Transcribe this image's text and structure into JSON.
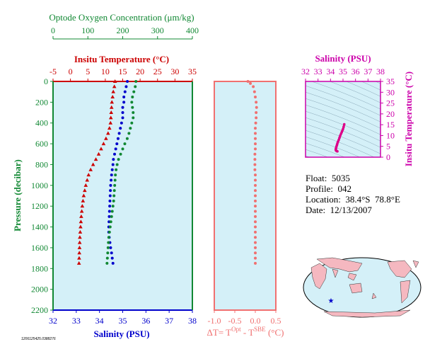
{
  "colors": {
    "temperature": "#cc0000",
    "salinity": "#0000cc",
    "oxygen": "#118833",
    "delta_t": "#f07070",
    "ts_curve": "#dd0088",
    "axis_magenta": "#cc00aa",
    "plot_bg": "#d4f0f8",
    "land": "#f5b8c0",
    "float_marker": "#0000cc"
  },
  "labels": {
    "oxygen_title": "Optode Oxygen Concentration (μm/kg)",
    "temp_title": "Insitu Temperature (°C)",
    "pressure_title": "Pressure (decibar)",
    "salinity_title": "Salinity (PSU)",
    "delta_title": "ΔT= T",
    "delta_sup1": "Opt",
    "delta_mid": " - T",
    "delta_sup2": "SBE",
    "delta_end": " (°C)",
    "ts_salinity_title": "Salinity (PSU)",
    "ts_temp_title": "Insitu Temperature (°C)",
    "footer_stamp": "1206125425.0388276"
  },
  "float_info": {
    "float": "Float:  5035",
    "profile": "Profile:  042",
    "location": "Location:  38.4°S  78.8°E",
    "date": "Date:  12/13/2007"
  },
  "chart_data": [
    {
      "type": "scatter",
      "title": "",
      "ylabel": "Pressure (decibar)",
      "ylim": [
        2200,
        0
      ],
      "y_ticks": [
        "0",
        "200",
        "400",
        "600",
        "800",
        "1000",
        "1200",
        "1400",
        "1600",
        "1800",
        "2000",
        "2200"
      ],
      "axes": {
        "oxygen": {
          "label": "Optode Oxygen Concentration (μm/kg)",
          "range": [
            0,
            400
          ],
          "ticks": [
            "0",
            "100",
            "200",
            "300",
            "400"
          ]
        },
        "temperature": {
          "label": "Insitu Temperature (°C)",
          "range": [
            -5,
            35
          ],
          "ticks": [
            "-5",
            "0",
            "5",
            "10",
            "15",
            "20",
            "25",
            "30",
            "35"
          ]
        },
        "salinity": {
          "label": "Salinity (PSU)",
          "range": [
            32,
            38
          ],
          "ticks": [
            "32",
            "33",
            "34",
            "35",
            "36",
            "37",
            "38"
          ]
        }
      },
      "series": [
        {
          "key": "temperature",
          "marker": "triangle",
          "points": [
            [
              12.8,
              0
            ],
            [
              12.6,
              50
            ],
            [
              12.3,
              100
            ],
            [
              12.1,
              150
            ],
            [
              11.9,
              200
            ],
            [
              11.8,
              250
            ],
            [
              11.7,
              300
            ],
            [
              11.6,
              350
            ],
            [
              11.5,
              400
            ],
            [
              11.2,
              450
            ],
            [
              10.8,
              500
            ],
            [
              10.2,
              550
            ],
            [
              9.5,
              600
            ],
            [
              8.8,
              650
            ],
            [
              8.1,
              700
            ],
            [
              7.3,
              750
            ],
            [
              6.5,
              800
            ],
            [
              5.8,
              850
            ],
            [
              5.2,
              900
            ],
            [
              4.8,
              950
            ],
            [
              4.4,
              1000
            ],
            [
              4.1,
              1050
            ],
            [
              3.8,
              1100
            ],
            [
              3.6,
              1150
            ],
            [
              3.4,
              1200
            ],
            [
              3.25,
              1250
            ],
            [
              3.1,
              1300
            ],
            [
              3.0,
              1350
            ],
            [
              2.9,
              1400
            ],
            [
              2.8,
              1450
            ],
            [
              2.7,
              1500
            ],
            [
              2.65,
              1550
            ],
            [
              2.6,
              1600
            ],
            [
              2.55,
              1650
            ],
            [
              2.5,
              1700
            ],
            [
              2.45,
              1750
            ]
          ]
        },
        {
          "key": "salinity",
          "marker": "circle",
          "points": [
            [
              35.2,
              0
            ],
            [
              35.15,
              50
            ],
            [
              35.1,
              100
            ],
            [
              35.05,
              150
            ],
            [
              35.05,
              200
            ],
            [
              35.0,
              250
            ],
            [
              35.0,
              300
            ],
            [
              35.0,
              350
            ],
            [
              34.95,
              400
            ],
            [
              34.9,
              450
            ],
            [
              34.85,
              500
            ],
            [
              34.8,
              550
            ],
            [
              34.75,
              600
            ],
            [
              34.7,
              650
            ],
            [
              34.65,
              700
            ],
            [
              34.6,
              750
            ],
            [
              34.58,
              800
            ],
            [
              34.55,
              850
            ],
            [
              34.52,
              900
            ],
            [
              34.5,
              950
            ],
            [
              34.48,
              1000
            ],
            [
              34.47,
              1050
            ],
            [
              34.46,
              1100
            ],
            [
              34.45,
              1150
            ],
            [
              34.44,
              1200
            ],
            [
              34.43,
              1250
            ],
            [
              34.42,
              1300
            ],
            [
              34.41,
              1350
            ],
            [
              34.4,
              1400
            ],
            [
              34.4,
              1450
            ],
            [
              34.42,
              1500
            ],
            [
              34.45,
              1550
            ],
            [
              34.48,
              1600
            ],
            [
              34.52,
              1650
            ],
            [
              34.55,
              1700
            ],
            [
              34.58,
              1750
            ]
          ]
        },
        {
          "key": "oxygen",
          "marker": "circle",
          "points": [
            [
              238,
              0
            ],
            [
              236,
              50
            ],
            [
              232,
              100
            ],
            [
              228,
              150
            ],
            [
              226,
              200
            ],
            [
              228,
              250
            ],
            [
              230,
              300
            ],
            [
              230,
              350
            ],
            [
              226,
              400
            ],
            [
              222,
              450
            ],
            [
              218,
              500
            ],
            [
              213,
              550
            ],
            [
              206,
              600
            ],
            [
              200,
              650
            ],
            [
              194,
              700
            ],
            [
              188,
              750
            ],
            [
              184,
              800
            ],
            [
              181,
              850
            ],
            [
              179,
              900
            ],
            [
              178,
              950
            ],
            [
              177,
              1000
            ],
            [
              176,
              1050
            ],
            [
              175,
              1100
            ],
            [
              174,
              1150
            ],
            [
              172,
              1200
            ],
            [
              170,
              1250
            ],
            [
              168,
              1300
            ],
            [
              166,
              1350
            ],
            [
              164,
              1400
            ],
            [
              162,
              1450
            ],
            [
              160,
              1500
            ],
            [
              159,
              1550
            ],
            [
              158,
              1600
            ],
            [
              157,
              1650
            ],
            [
              156,
              1700
            ],
            [
              155,
              1750
            ]
          ]
        }
      ]
    },
    {
      "type": "scatter",
      "title": "",
      "xlabel": "ΔT= T^Opt - T^SBE (°C)",
      "xlim": [
        -1.0,
        0.5
      ],
      "ylim": [
        2200,
        0
      ],
      "x_ticks": [
        "-1.0",
        "-0.5",
        "0.0",
        "0.5"
      ],
      "series": [
        {
          "key": "delta_t",
          "points": [
            [
              -0.18,
              0
            ],
            [
              -0.12,
              20
            ],
            [
              -0.05,
              50
            ],
            [
              -0.02,
              100
            ],
            [
              0.0,
              150
            ],
            [
              0.02,
              200
            ],
            [
              0.03,
              250
            ],
            [
              0.02,
              300
            ],
            [
              0.02,
              350
            ],
            [
              0.01,
              400
            ],
            [
              0.0,
              450
            ],
            [
              0.0,
              500
            ],
            [
              0.0,
              550
            ],
            [
              0.0,
              600
            ],
            [
              0.0,
              650
            ],
            [
              -0.01,
              700
            ],
            [
              -0.01,
              750
            ],
            [
              -0.01,
              800
            ],
            [
              -0.01,
              850
            ],
            [
              0.0,
              900
            ],
            [
              0.0,
              950
            ],
            [
              0.0,
              1000
            ],
            [
              0.0,
              1050
            ],
            [
              0.0,
              1100
            ],
            [
              0.0,
              1150
            ],
            [
              0.0,
              1200
            ],
            [
              0.0,
              1250
            ],
            [
              0.0,
              1300
            ],
            [
              0.0,
              1350
            ],
            [
              0.0,
              1400
            ],
            [
              0.0,
              1450
            ],
            [
              0.0,
              1500
            ],
            [
              0.0,
              1550
            ],
            [
              0.0,
              1600
            ],
            [
              0.0,
              1650
            ],
            [
              0.0,
              1700
            ],
            [
              0.0,
              1750
            ]
          ]
        }
      ]
    },
    {
      "type": "line",
      "title": "",
      "xlabel": "Salinity (PSU)",
      "ylabel": "Insitu Temperature (°C)",
      "xlim": [
        32,
        38
      ],
      "ylim": [
        0,
        35
      ],
      "x_ticks": [
        "32",
        "33",
        "34",
        "35",
        "36",
        "37",
        "38"
      ],
      "y_ticks": [
        "0",
        "5",
        "10",
        "15",
        "20",
        "25",
        "30",
        "35"
      ],
      "series": [
        {
          "key": "ts_curve",
          "points": [
            [
              35.1,
              15.2
            ],
            [
              35.05,
              14.0
            ],
            [
              35.0,
              13.0
            ],
            [
              34.95,
              12.3
            ],
            [
              34.9,
              11.6
            ],
            [
              34.85,
              10.9
            ],
            [
              34.78,
              10.0
            ],
            [
              34.72,
              9.0
            ],
            [
              34.66,
              8.0
            ],
            [
              34.6,
              7.2
            ],
            [
              34.55,
              6.4
            ],
            [
              34.52,
              5.7
            ],
            [
              34.48,
              5.0
            ],
            [
              34.45,
              4.4
            ],
            [
              34.43,
              3.9
            ],
            [
              34.42,
              3.5
            ],
            [
              34.43,
              3.2
            ],
            [
              34.46,
              3.0
            ],
            [
              34.5,
              2.8
            ],
            [
              34.55,
              2.7
            ]
          ]
        }
      ]
    }
  ]
}
